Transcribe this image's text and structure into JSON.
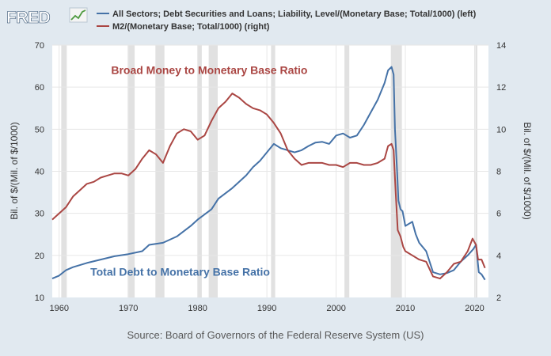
{
  "header": {
    "logo_text": "FRED",
    "logo_icon": "line-chart-icon",
    "legend": [
      {
        "label": "All Sectors; Debt Securities and Loans; Liability, Level/(Monetary Base; Total/1000) (left)",
        "color": "#4572a7"
      },
      {
        "label": "M2/(Monetary Base; Total/1000) (right)",
        "color": "#aa4643"
      }
    ]
  },
  "footer": {
    "source": "Source: Board of Governors of the Federal Reserve System (US)"
  },
  "chart_data": {
    "type": "line",
    "left_axis": {
      "label": "Bil. of $/(Mil. of $/1000)",
      "range": [
        10,
        70
      ],
      "ticks": [
        10,
        20,
        30,
        40,
        50,
        60,
        70
      ]
    },
    "right_axis": {
      "label": "Bil. of $/(Mil. of $/1000)",
      "range": [
        2,
        14
      ],
      "ticks": [
        2,
        4,
        6,
        8,
        10,
        12,
        14
      ]
    },
    "x_axis": {
      "range": [
        1959,
        2022
      ],
      "ticks": [
        1960,
        1970,
        1980,
        1990,
        2000,
        2010,
        2020
      ]
    },
    "grid": true,
    "recessions": [
      [
        1960.3,
        1961.1
      ],
      [
        1969.9,
        1970.9
      ],
      [
        1973.9,
        1975.2
      ],
      [
        1980.0,
        1980.6
      ],
      [
        1981.6,
        1982.9
      ],
      [
        1990.6,
        1991.2
      ],
      [
        2001.2,
        2001.9
      ],
      [
        2007.9,
        2009.5
      ],
      [
        2020.1,
        2020.4
      ]
    ],
    "annotations": [
      {
        "text": "Broad Money to Monetary Base Ratio",
        "color": "#aa4643",
        "x": 1967.5,
        "y": 63.1
      },
      {
        "text": "Total Debt to Monetary Base Ratio",
        "color": "#4572a7",
        "x": 1964.5,
        "y": 15.2
      }
    ],
    "series": [
      {
        "name": "All Sectors; Debt Securities and Loans; Liability, Level/(Monetary Base; Total/1000) (left)",
        "axis": "left",
        "color": "#4572a7",
        "x": [
          1959,
          1960,
          1961,
          1962,
          1964,
          1966,
          1968,
          1970,
          1972,
          1973,
          1975,
          1977,
          1979,
          1980,
          1982,
          1983,
          1985,
          1987,
          1988,
          1989,
          1990,
          1991,
          1992,
          1993,
          1994,
          1995,
          1996,
          1997,
          1998,
          1999,
          2000,
          2001,
          2002,
          2003,
          2004,
          2005,
          2006,
          2007,
          2007.5,
          2008,
          2008.3,
          2008.5,
          2008.8,
          2009,
          2009.3,
          2009.6,
          2010,
          2011,
          2011.5,
          2012,
          2013,
          2014,
          2015,
          2016,
          2017,
          2018,
          2019,
          2019.8,
          2020.2,
          2020.6,
          2021,
          2021.5
        ],
        "y": [
          14.5,
          15.2,
          16.5,
          17.2,
          18.2,
          19.0,
          19.8,
          20.3,
          21.0,
          22.5,
          23.0,
          24.5,
          27.0,
          28.5,
          31.0,
          33.5,
          36.0,
          39.0,
          41.0,
          42.5,
          44.5,
          46.5,
          45.5,
          45.0,
          44.5,
          45.0,
          46.0,
          46.8,
          47.0,
          46.5,
          48.5,
          49.0,
          48.0,
          48.5,
          51.0,
          54.0,
          57.0,
          61.0,
          64.0,
          64.8,
          63.0,
          50.0,
          40.0,
          33.0,
          31.0,
          30.5,
          27.0,
          28.0,
          25.0,
          23.0,
          21.0,
          16.0,
          15.5,
          15.8,
          16.5,
          18.5,
          20.0,
          21.5,
          22.5,
          16.0,
          15.5,
          14.2
        ]
      },
      {
        "name": "M2/(Monetary Base; Total/1000) (right)",
        "axis": "right",
        "color": "#aa4643",
        "x": [
          1959,
          1960,
          1961,
          1962,
          1963,
          1964,
          1965,
          1966,
          1967,
          1968,
          1969,
          1970,
          1971,
          1972,
          1973,
          1974,
          1975,
          1976,
          1977,
          1978,
          1979,
          1980,
          1981,
          1982,
          1983,
          1984,
          1985,
          1986,
          1987,
          1988,
          1989,
          1990,
          1991,
          1992,
          1993,
          1994,
          1995,
          1996,
          1997,
          1998,
          1999,
          2000,
          2001,
          2002,
          2003,
          2004,
          2005,
          2006,
          2007,
          2007.5,
          2008,
          2008.3,
          2008.6,
          2008.9,
          2009.3,
          2009.7,
          2010,
          2011,
          2012,
          2013,
          2014,
          2015,
          2016,
          2017,
          2018,
          2019,
          2019.7,
          2020.2,
          2020.5,
          2021,
          2021.5
        ],
        "y": [
          5.7,
          6.0,
          6.3,
          6.8,
          7.1,
          7.4,
          7.5,
          7.7,
          7.8,
          7.9,
          7.9,
          7.8,
          8.1,
          8.6,
          9.0,
          8.8,
          8.4,
          9.2,
          9.8,
          10.0,
          9.9,
          9.5,
          9.7,
          10.4,
          11.0,
          11.3,
          11.7,
          11.5,
          11.2,
          11.0,
          10.9,
          10.7,
          10.3,
          9.8,
          9.0,
          8.6,
          8.3,
          8.4,
          8.4,
          8.4,
          8.3,
          8.3,
          8.2,
          8.4,
          8.4,
          8.3,
          8.3,
          8.4,
          8.6,
          9.2,
          9.3,
          9.0,
          7.0,
          5.2,
          4.9,
          4.4,
          4.2,
          4.0,
          3.8,
          3.7,
          3.0,
          2.9,
          3.2,
          3.6,
          3.7,
          4.2,
          4.8,
          4.5,
          3.8,
          3.8,
          3.4
        ]
      }
    ]
  }
}
